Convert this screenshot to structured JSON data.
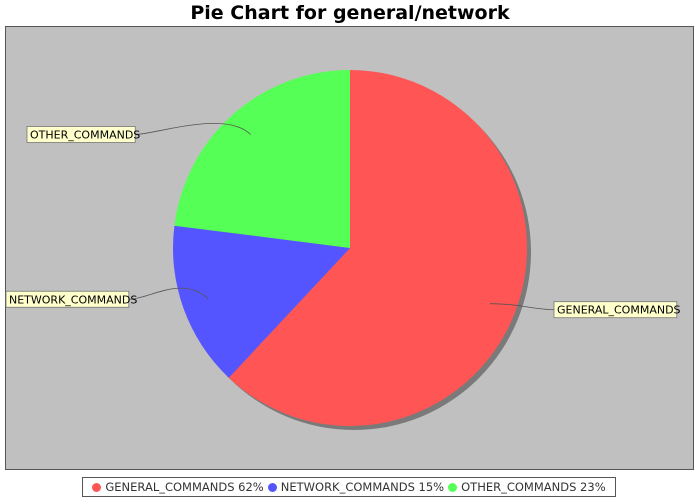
{
  "chart_data": {
    "type": "pie",
    "title": "Pie Chart for general/network",
    "slices": [
      {
        "label": "GENERAL_COMMANDS",
        "value": 62,
        "legend": "GENERAL_COMMANDS 62%",
        "color": "#ff5555",
        "callout_side": "right"
      },
      {
        "label": "NETWORK_COMMANDS",
        "value": 15,
        "legend": "NETWORK_COMMANDS 15%",
        "color": "#5555ff",
        "callout_side": "left"
      },
      {
        "label": "OTHER_COMMANDS",
        "value": 23,
        "legend": "OTHER_COMMANDS 23%",
        "color": "#55ff55",
        "callout_side": "left"
      }
    ],
    "start_angle": "12 o'clock",
    "direction": "clockwise",
    "legend_position": "bottom",
    "plot_background": "#c0c0c0",
    "label_background": "#ffffcc"
  }
}
